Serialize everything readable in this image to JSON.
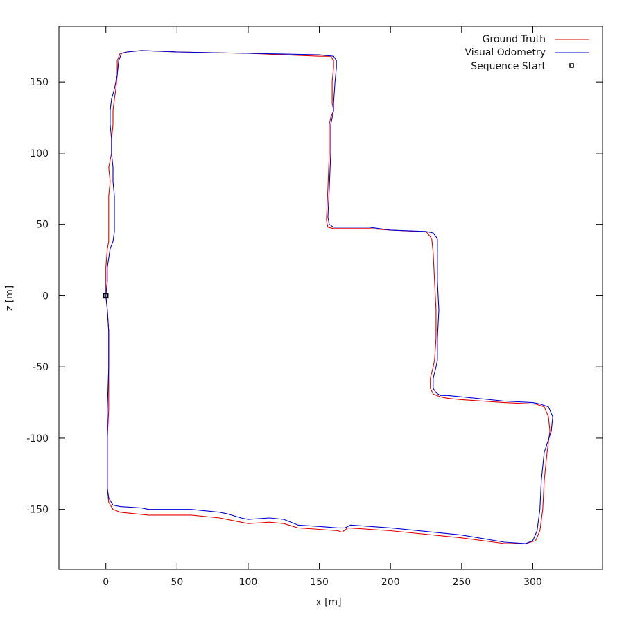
{
  "chart_data": {
    "type": "line",
    "title": "",
    "xlabel": "x [m]",
    "ylabel": "z [m]",
    "xlim": [
      -33,
      349
    ],
    "ylim": [
      -192,
      189
    ],
    "xticks": [
      0,
      50,
      100,
      150,
      200,
      250,
      300
    ],
    "yticks": [
      150,
      100,
      50,
      0,
      -50,
      -100,
      -150
    ],
    "grid": false,
    "legend_position": "top-right",
    "legend": [
      "Ground Truth",
      "Visual Odometry",
      "Sequence Start"
    ],
    "colors": {
      "ground_truth": "#e00000",
      "visual_odometry": "#0000d0",
      "marker": "#000000"
    },
    "series": [
      {
        "name": "Ground Truth",
        "points": [
          [
            0,
            0
          ],
          [
            1,
            -10
          ],
          [
            2,
            -25
          ],
          [
            2,
            -50
          ],
          [
            2,
            -80
          ],
          [
            1,
            -100
          ],
          [
            1,
            -120
          ],
          [
            1,
            -135
          ],
          [
            2,
            -145
          ],
          [
            5,
            -150
          ],
          [
            10,
            -152
          ],
          [
            30,
            -154
          ],
          [
            60,
            -154
          ],
          [
            80,
            -156
          ],
          [
            85,
            -157
          ],
          [
            95,
            -159
          ],
          [
            100,
            -160
          ],
          [
            115,
            -159
          ],
          [
            125,
            -160
          ],
          [
            135,
            -163
          ],
          [
            150,
            -164
          ],
          [
            163,
            -165
          ],
          [
            166,
            -166
          ],
          [
            170,
            -163
          ],
          [
            200,
            -165
          ],
          [
            250,
            -170
          ],
          [
            280,
            -174
          ],
          [
            295,
            -174
          ],
          [
            302,
            -172
          ],
          [
            305,
            -165
          ],
          [
            307,
            -150
          ],
          [
            308,
            -130
          ],
          [
            310,
            -110
          ],
          [
            312,
            -95
          ],
          [
            311,
            -85
          ],
          [
            308,
            -78
          ],
          [
            302,
            -76
          ],
          [
            300,
            -76
          ],
          [
            280,
            -75
          ],
          [
            250,
            -73
          ],
          [
            240,
            -72
          ],
          [
            235,
            -71
          ],
          [
            230,
            -69
          ],
          [
            228,
            -65
          ],
          [
            228,
            -58
          ],
          [
            230,
            -50
          ],
          [
            231,
            -45
          ],
          [
            232,
            -30
          ],
          [
            232,
            -10
          ],
          [
            231,
            10
          ],
          [
            230,
            30
          ],
          [
            229,
            40
          ],
          [
            225,
            45
          ],
          [
            220,
            45
          ],
          [
            200,
            46
          ],
          [
            185,
            47
          ],
          [
            165,
            47
          ],
          [
            160,
            47
          ],
          [
            156,
            48
          ],
          [
            155,
            53
          ],
          [
            156,
            75
          ],
          [
            157,
            100
          ],
          [
            157,
            120
          ],
          [
            158,
            125
          ],
          [
            160,
            130
          ],
          [
            159,
            135
          ],
          [
            159,
            150
          ],
          [
            160,
            160
          ],
          [
            160,
            165
          ],
          [
            158,
            168
          ],
          [
            150,
            168
          ],
          [
            100,
            170
          ],
          [
            50,
            171
          ],
          [
            25,
            172
          ],
          [
            15,
            171
          ],
          [
            10,
            170
          ],
          [
            8,
            165
          ],
          [
            8,
            155
          ],
          [
            7,
            145
          ],
          [
            6,
            138
          ],
          [
            5,
            130
          ],
          [
            5,
            120
          ],
          [
            4,
            110
          ],
          [
            4,
            100
          ],
          [
            2,
            90
          ],
          [
            3,
            80
          ],
          [
            2,
            70
          ],
          [
            2,
            60
          ],
          [
            2,
            45
          ],
          [
            2,
            38
          ],
          [
            1,
            33
          ],
          [
            0,
            20
          ],
          [
            0,
            10
          ],
          [
            0,
            0
          ]
        ]
      },
      {
        "name": "Visual Odometry",
        "points": [
          [
            0,
            0
          ],
          [
            1,
            -10
          ],
          [
            2,
            -25
          ],
          [
            2,
            -50
          ],
          [
            1,
            -80
          ],
          [
            1,
            -100
          ],
          [
            1,
            -120
          ],
          [
            1,
            -135
          ],
          [
            2,
            -142
          ],
          [
            5,
            -147
          ],
          [
            10,
            -148
          ],
          [
            25,
            -149
          ],
          [
            30,
            -150
          ],
          [
            60,
            -150
          ],
          [
            80,
            -152
          ],
          [
            85,
            -153
          ],
          [
            95,
            -156
          ],
          [
            100,
            -157
          ],
          [
            115,
            -156
          ],
          [
            125,
            -157
          ],
          [
            135,
            -161
          ],
          [
            150,
            -162
          ],
          [
            163,
            -163
          ],
          [
            168,
            -163
          ],
          [
            172,
            -161
          ],
          [
            200,
            -163
          ],
          [
            250,
            -168
          ],
          [
            280,
            -173
          ],
          [
            295,
            -174
          ],
          [
            300,
            -172
          ],
          [
            303,
            -165
          ],
          [
            305,
            -150
          ],
          [
            306,
            -130
          ],
          [
            308,
            -110
          ],
          [
            313,
            -95
          ],
          [
            314,
            -85
          ],
          [
            311,
            -78
          ],
          [
            305,
            -76
          ],
          [
            300,
            -75
          ],
          [
            280,
            -74
          ],
          [
            250,
            -71
          ],
          [
            240,
            -70
          ],
          [
            235,
            -70
          ],
          [
            232,
            -68
          ],
          [
            230,
            -65
          ],
          [
            230,
            -58
          ],
          [
            232,
            -50
          ],
          [
            233,
            -45
          ],
          [
            233,
            -30
          ],
          [
            234,
            -10
          ],
          [
            233,
            10
          ],
          [
            233,
            30
          ],
          [
            233,
            40
          ],
          [
            230,
            44
          ],
          [
            225,
            45
          ],
          [
            200,
            46
          ],
          [
            185,
            48
          ],
          [
            165,
            48
          ],
          [
            160,
            48
          ],
          [
            157,
            50
          ],
          [
            156,
            55
          ],
          [
            157,
            75
          ],
          [
            158,
            100
          ],
          [
            158,
            120
          ],
          [
            159,
            125
          ],
          [
            160,
            130
          ],
          [
            160,
            135
          ],
          [
            161,
            150
          ],
          [
            162,
            160
          ],
          [
            162,
            165
          ],
          [
            160,
            168
          ],
          [
            150,
            169
          ],
          [
            100,
            170
          ],
          [
            50,
            171
          ],
          [
            25,
            172
          ],
          [
            15,
            171
          ],
          [
            11,
            170
          ],
          [
            9,
            165
          ],
          [
            8,
            155
          ],
          [
            6,
            145
          ],
          [
            4,
            138
          ],
          [
            3,
            130
          ],
          [
            3,
            120
          ],
          [
            4,
            110
          ],
          [
            4,
            100
          ],
          [
            5,
            90
          ],
          [
            5,
            80
          ],
          [
            6,
            70
          ],
          [
            6,
            60
          ],
          [
            6,
            45
          ],
          [
            5,
            38
          ],
          [
            3,
            33
          ],
          [
            1,
            20
          ],
          [
            1,
            10
          ],
          [
            0,
            0
          ]
        ]
      }
    ],
    "marker": {
      "label": "Sequence Start",
      "x": 0,
      "y": 0
    }
  }
}
